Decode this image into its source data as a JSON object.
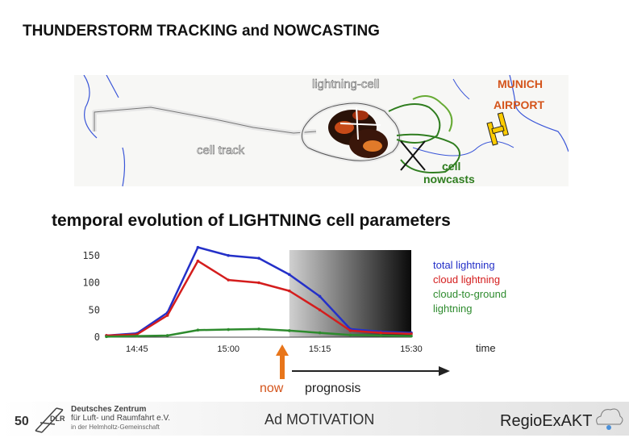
{
  "header": {
    "title": "THUNDERSTORM TRACKING and NOWCASTING",
    "subtitle": "temporal evolution of LIGHTNING cell parameters"
  },
  "map": {
    "lightning_cell": "lightning-cell",
    "airport_line1": "MUNICH",
    "airport_line2": "AIRPORT",
    "cell_track": "cell track",
    "nowcasts_line1": "cell",
    "nowcasts_line2": "nowcasts"
  },
  "chart_data": {
    "type": "line",
    "x": [
      "14:40",
      "14:45",
      "14:50",
      "14:55",
      "15:00",
      "15:05",
      "15:10",
      "15:15",
      "15:20",
      "15:25",
      "15:30"
    ],
    "x_tick_labels": [
      "14:45",
      "15:00",
      "15:15",
      "15:30"
    ],
    "xlabel": "time",
    "ylim": [
      0,
      160
    ],
    "y_ticks": [
      "0",
      "50",
      "100",
      "150"
    ],
    "series": [
      {
        "name": "total lightning",
        "color": "#2430c8",
        "values": [
          3,
          7,
          45,
          165,
          150,
          145,
          115,
          75,
          15,
          10,
          8
        ]
      },
      {
        "name": "cloud lightning",
        "color": "#d41d1d",
        "values": [
          3,
          5,
          40,
          140,
          105,
          100,
          85,
          50,
          12,
          8,
          6
        ]
      },
      {
        "name": "cloud-to-ground lightning",
        "color": "#2e8b2e",
        "values": [
          1,
          2,
          3,
          13,
          14,
          15,
          12,
          8,
          4,
          3,
          2
        ]
      }
    ],
    "prognosis_shading": {
      "from": "15:10",
      "to": "15:30"
    },
    "now_marker": "15:10",
    "grid": false,
    "legend_position": "top-right"
  },
  "annotations": {
    "now": "now",
    "prognosis": "prognosis"
  },
  "footer": {
    "page_number": "50",
    "org_line1": "Deutsches Zentrum",
    "org_line2": "für Luft- und Raumfahrt e.V.",
    "org_line3": "in der Helmholtz-Gemeinschaft",
    "org_tag": "DLR",
    "label": "Ad MOTIVATION",
    "brand": "RegioExAKT"
  }
}
